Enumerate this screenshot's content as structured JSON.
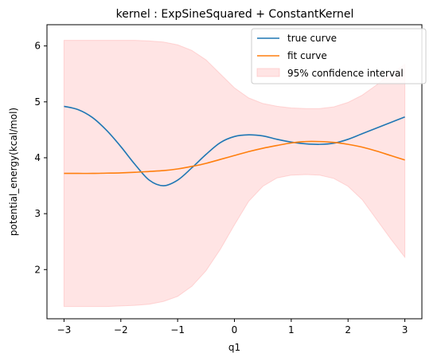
{
  "chart_data": {
    "type": "line",
    "title": "kernel : ExpSineSquared + ConstantKernel",
    "xlabel": "q1",
    "ylabel": "potential_energy(kcal/mol)",
    "xlim": [
      -3.3,
      3.3
    ],
    "ylim": [
      1.12,
      6.38
    ],
    "xticks": [
      -3,
      -2,
      -1,
      0,
      1,
      2,
      3
    ],
    "yticks": [
      2,
      3,
      4,
      5,
      6
    ],
    "grid": false,
    "legend_position": "top-right",
    "series": [
      {
        "name": "true curve",
        "color": "#1f77b4",
        "x": [
          -3.0,
          -2.75,
          -2.5,
          -2.25,
          -2.0,
          -1.75,
          -1.5,
          -1.25,
          -1.0,
          -0.75,
          -0.5,
          -0.25,
          0.0,
          0.25,
          0.5,
          0.75,
          1.0,
          1.25,
          1.5,
          1.75,
          2.0,
          2.25,
          2.5,
          2.75,
          3.0
        ],
        "y": [
          4.92,
          4.86,
          4.72,
          4.49,
          4.2,
          3.88,
          3.6,
          3.5,
          3.6,
          3.82,
          4.06,
          4.27,
          4.38,
          4.41,
          4.39,
          4.33,
          4.28,
          4.25,
          4.24,
          4.26,
          4.33,
          4.43,
          4.53,
          4.63,
          4.73
        ]
      },
      {
        "name": "fit curve",
        "color": "#ff7f0e",
        "x": [
          -3.0,
          -2.75,
          -2.5,
          -2.25,
          -2.0,
          -1.75,
          -1.5,
          -1.25,
          -1.0,
          -0.75,
          -0.5,
          -0.25,
          0.0,
          0.25,
          0.5,
          0.75,
          1.0,
          1.25,
          1.5,
          1.75,
          2.0,
          2.25,
          2.5,
          2.75,
          3.0
        ],
        "y": [
          3.72,
          3.72,
          3.72,
          3.725,
          3.73,
          3.74,
          3.755,
          3.77,
          3.8,
          3.845,
          3.9,
          3.97,
          4.04,
          4.11,
          4.17,
          4.22,
          4.265,
          4.29,
          4.29,
          4.275,
          4.24,
          4.19,
          4.12,
          4.04,
          3.96
        ]
      }
    ],
    "band": {
      "name": "95% confidence interval",
      "color": "#ffb3b3",
      "x": [
        -3.0,
        -2.75,
        -2.5,
        -2.25,
        -2.0,
        -1.75,
        -1.5,
        -1.25,
        -1.0,
        -0.75,
        -0.5,
        -0.25,
        0.0,
        0.25,
        0.5,
        0.75,
        1.0,
        1.25,
        1.5,
        1.75,
        2.0,
        2.25,
        2.5,
        2.75,
        3.0
      ],
      "upper": [
        6.1,
        6.1,
        6.1,
        6.1,
        6.1,
        6.1,
        6.09,
        6.07,
        6.02,
        5.92,
        5.75,
        5.5,
        5.25,
        5.07,
        4.97,
        4.92,
        4.89,
        4.88,
        4.88,
        4.91,
        4.99,
        5.12,
        5.3,
        5.5,
        5.67
      ],
      "lower": [
        1.34,
        1.34,
        1.34,
        1.34,
        1.35,
        1.36,
        1.38,
        1.43,
        1.52,
        1.7,
        1.98,
        2.36,
        2.8,
        3.22,
        3.49,
        3.64,
        3.69,
        3.7,
        3.69,
        3.63,
        3.49,
        3.25,
        2.9,
        2.55,
        2.22
      ]
    }
  }
}
